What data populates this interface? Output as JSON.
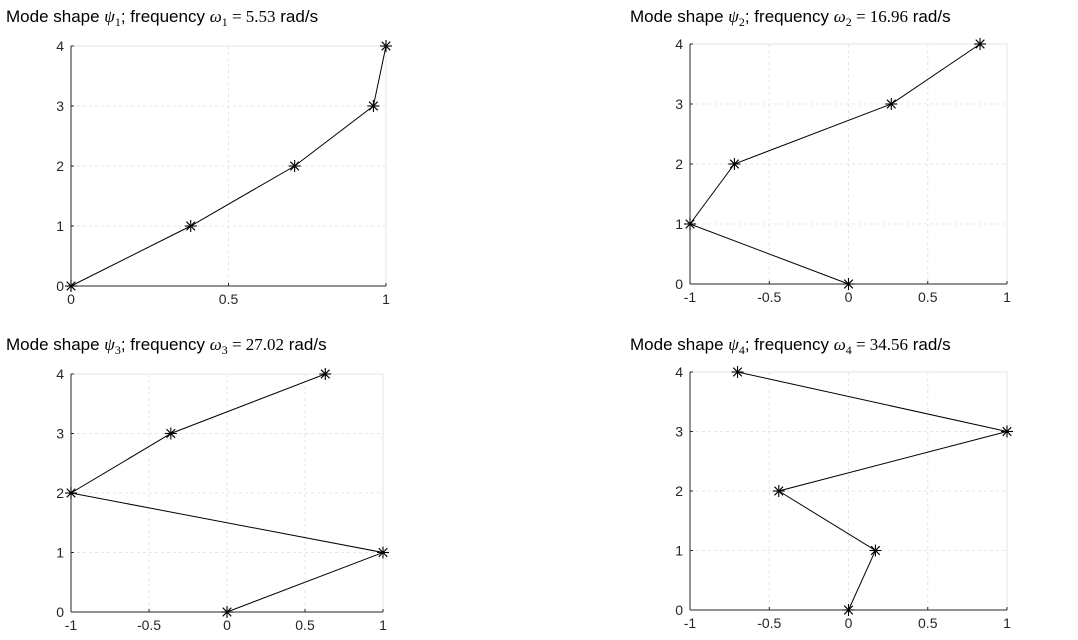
{
  "chart_data": [
    {
      "type": "line",
      "title": "Mode shape ψ1; frequency ω1 = 5.53 rad/s",
      "title_parts": {
        "label": "Mode shape ",
        "psi": "ψ",
        "mode": "1",
        "freq_label": "; frequency ",
        "omega": "ω",
        "eq": " = ",
        "value": "5.53",
        "unit": " rad/s"
      },
      "xlim": [
        0,
        1
      ],
      "ylim": [
        0,
        4
      ],
      "xticks": [
        "0",
        "0.5",
        "1"
      ],
      "yticks": [
        "0",
        "1",
        "2",
        "3",
        "4"
      ],
      "xticks_values": [
        0,
        0.5,
        1
      ],
      "yticks_values": [
        0,
        1,
        2,
        3,
        4
      ],
      "grid": true,
      "marker": "asterisk",
      "x": [
        0,
        0.38,
        0.71,
        0.96,
        1.0
      ],
      "y": [
        0,
        1,
        2,
        3,
        4
      ]
    },
    {
      "type": "line",
      "title": "Mode shape ψ2; frequency ω2 = 16.96 rad/s",
      "title_parts": {
        "label": "Mode shape ",
        "psi": "ψ",
        "mode": "2",
        "freq_label": "; frequency ",
        "omega": "ω",
        "eq": " = ",
        "value": "16.96",
        "unit": " rad/s"
      },
      "xlim": [
        -1,
        1
      ],
      "ylim": [
        0,
        4
      ],
      "xticks": [
        "-1",
        "-0.5",
        "0",
        "0.5",
        "1"
      ],
      "yticks": [
        "0",
        "1",
        "2",
        "3",
        "4"
      ],
      "xticks_values": [
        -1,
        -0.5,
        0,
        0.5,
        1
      ],
      "yticks_values": [
        0,
        1,
        2,
        3,
        4
      ],
      "grid": true,
      "marker": "asterisk",
      "x": [
        0,
        -1.0,
        -0.72,
        0.27,
        0.83
      ],
      "y": [
        0,
        1,
        2,
        3,
        4
      ]
    },
    {
      "type": "line",
      "title": "Mode shape ψ3; frequency ω3 = 27.02 rad/s",
      "title_parts": {
        "label": "Mode shape ",
        "psi": "ψ",
        "mode": "3",
        "freq_label": "; frequency ",
        "omega": "ω",
        "eq": " = ",
        "value": "27.02",
        "unit": " rad/s"
      },
      "xlim": [
        -1,
        1
      ],
      "ylim": [
        0,
        4
      ],
      "xticks": [
        "-1",
        "-0.5",
        "0",
        "0.5",
        "1"
      ],
      "yticks": [
        "0",
        "1",
        "2",
        "3",
        "4"
      ],
      "xticks_values": [
        -1,
        -0.5,
        0,
        0.5,
        1
      ],
      "yticks_values": [
        0,
        1,
        2,
        3,
        4
      ],
      "grid": true,
      "marker": "asterisk",
      "x": [
        0,
        1.0,
        -1.0,
        -0.36,
        0.63
      ],
      "y": [
        0,
        1,
        2,
        3,
        4
      ]
    },
    {
      "type": "line",
      "title": "Mode shape ψ4; frequency ω4 = 34.56 rad/s",
      "title_parts": {
        "label": "Mode shape ",
        "psi": "ψ",
        "mode": "4",
        "freq_label": "; frequency ",
        "omega": "ω",
        "eq": " = ",
        "value": "34.56",
        "unit": " rad/s"
      },
      "xlim": [
        -1,
        1
      ],
      "ylim": [
        0,
        4
      ],
      "xticks": [
        "-1",
        "-0.5",
        "0",
        "0.5",
        "1"
      ],
      "yticks": [
        "0",
        "1",
        "2",
        "3",
        "4"
      ],
      "xticks_values": [
        -1,
        -0.5,
        0,
        0.5,
        1
      ],
      "yticks_values": [
        0,
        1,
        2,
        3,
        4
      ],
      "grid": true,
      "marker": "asterisk",
      "x": [
        0,
        0.17,
        -0.44,
        1.0,
        -0.7
      ],
      "y": [
        0,
        1,
        2,
        3,
        4
      ]
    }
  ]
}
